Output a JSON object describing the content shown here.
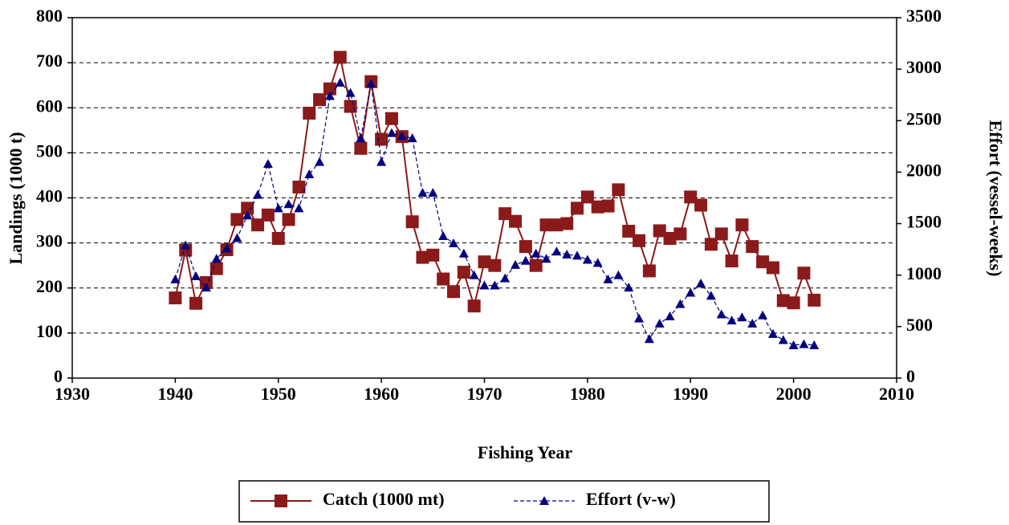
{
  "chart_data": {
    "type": "line",
    "x_label": "Fishing Year",
    "y_label": "Landings (1000 t)",
    "y2_label": "Effort (vessel-weeks)",
    "x": [
      1940,
      1941,
      1942,
      1943,
      1944,
      1945,
      1946,
      1947,
      1948,
      1949,
      1950,
      1951,
      1952,
      1953,
      1954,
      1955,
      1956,
      1957,
      1958,
      1959,
      1960,
      1961,
      1962,
      1963,
      1964,
      1965,
      1966,
      1967,
      1968,
      1969,
      1970,
      1971,
      1972,
      1973,
      1974,
      1975,
      1976,
      1977,
      1978,
      1979,
      1980,
      1981,
      1982,
      1983,
      1984,
      1985,
      1986,
      1987,
      1988,
      1989,
      1990,
      1991,
      1992,
      1993,
      1994,
      1995,
      1996,
      1997,
      1998,
      1999,
      2000,
      2001,
      2002
    ],
    "series": [
      {
        "name": "Catch (1000 mt)",
        "color": "#8b1a1a",
        "marker": "square",
        "dashed": false,
        "values": [
          178,
          284,
          166,
          212,
          243,
          285,
          352,
          377,
          340,
          362,
          310,
          352,
          424,
          588,
          618,
          642,
          712,
          603,
          510,
          658,
          530,
          576,
          536,
          347,
          268,
          273,
          220,
          192,
          235,
          160,
          258,
          250,
          365,
          348,
          292,
          250,
          340,
          340,
          343,
          377,
          402,
          380,
          382,
          418,
          326,
          305,
          238,
          327,
          310,
          320,
          402,
          384,
          297,
          320,
          260,
          340,
          292,
          258,
          245,
          172,
          167,
          233,
          173
        ]
      },
      {
        "name": "Effort (v-w)",
        "color": "#000080",
        "marker": "triangle",
        "dashed": true,
        "axis": "y2",
        "values": [
          960,
          1290,
          990,
          880,
          1160,
          1260,
          1360,
          1580,
          1780,
          2080,
          1650,
          1690,
          1650,
          1980,
          2100,
          2740,
          2870,
          2770,
          2330,
          2860,
          2100,
          2380,
          2350,
          2330,
          1800,
          1800,
          1380,
          1310,
          1210,
          1000,
          900,
          900,
          970,
          1100,
          1140,
          1210,
          1160,
          1230,
          1200,
          1190,
          1150,
          1120,
          960,
          1000,
          880,
          580,
          380,
          530,
          600,
          720,
          830,
          920,
          800,
          620,
          560,
          590,
          530,
          610,
          430,
          370,
          320,
          330,
          320
        ]
      }
    ],
    "xlim": [
      1930,
      2010
    ],
    "xticks": [
      1930,
      1940,
      1950,
      1960,
      1970,
      1980,
      1990,
      2000,
      2010
    ],
    "ylim": [
      0,
      800
    ],
    "yticks": [
      0,
      100,
      200,
      300,
      400,
      500,
      600,
      700,
      800
    ],
    "y2lim": [
      0,
      3500
    ],
    "y2ticks": [
      0,
      500,
      1000,
      1500,
      2000,
      2500,
      3000,
      3500
    ],
    "grid": true
  }
}
